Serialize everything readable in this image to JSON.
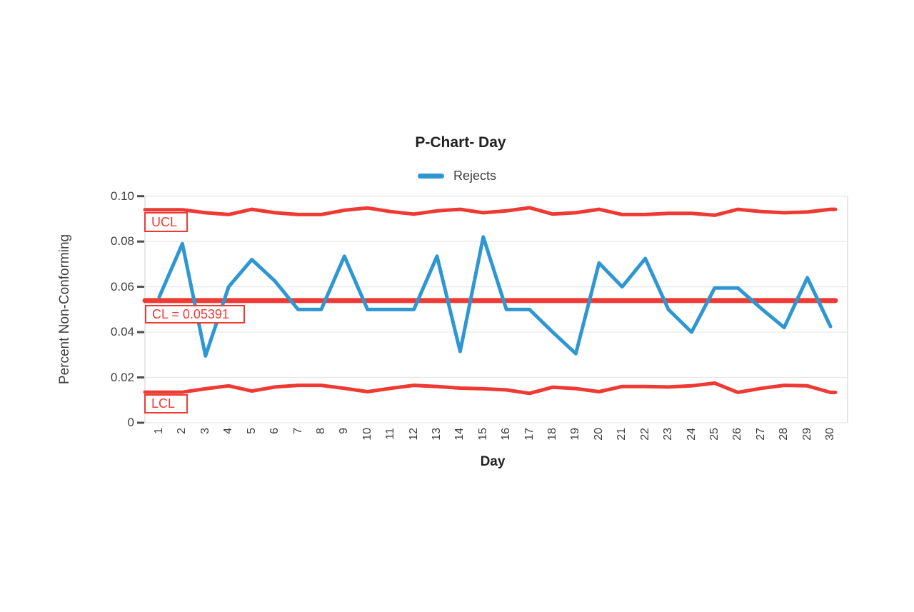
{
  "chart": {
    "title": "P-Chart- Day",
    "legend_position": "top",
    "colors": {
      "series_blue": "#2e97d3",
      "control_red": "#ee3a33",
      "gridline": "#e8e8e8",
      "axis_border": "#d9d9d9",
      "tick_mark": "#4d4d4d",
      "text": "#3f3f3f"
    },
    "annotations": {
      "ucl": "UCL",
      "cl": "CL = 0.05391",
      "lcl": "LCL"
    }
  },
  "chart_data": {
    "type": "line",
    "title": "P-Chart- Day",
    "xlabel": "Day",
    "ylabel": "Percent Non-Conforming",
    "ylim": [
      0,
      0.1
    ],
    "grid": true,
    "legend_position": "top",
    "legend_entries": [
      "Rejects"
    ],
    "y_tick_labels": [
      "0.10",
      "0.08",
      "0.06",
      "0.04",
      "0.02",
      "0"
    ],
    "y_tick_values": [
      0.1,
      0.08,
      0.06,
      0.04,
      0.02,
      0
    ],
    "x_categories": [
      1,
      2,
      3,
      4,
      5,
      6,
      7,
      8,
      9,
      10,
      11,
      12,
      13,
      14,
      15,
      16,
      17,
      18,
      19,
      20,
      21,
      22,
      23,
      24,
      25,
      26,
      27,
      28,
      29,
      30
    ],
    "center_line_value": 0.05391,
    "series": [
      {
        "name": "Rejects",
        "role": "data",
        "color": "#2e97d3",
        "values": [
          0.0555,
          0.079,
          0.0295,
          0.06,
          0.072,
          0.0625,
          0.05,
          0.05,
          0.0735,
          0.05,
          0.05,
          0.05,
          0.0735,
          0.0315,
          0.082,
          0.05,
          0.05,
          0.04,
          0.0305,
          0.0705,
          0.06,
          0.0725,
          0.05,
          0.04,
          0.0595,
          0.0595,
          0.0505,
          0.042,
          0.064,
          0.0425
        ]
      },
      {
        "name": "UCL",
        "role": "upper-control-limit",
        "color": "#ee3a33",
        "values": [
          0.094,
          0.094,
          0.0927,
          0.0919,
          0.0942,
          0.0927,
          0.0919,
          0.0919,
          0.0938,
          0.0948,
          0.0932,
          0.0921,
          0.0935,
          0.0942,
          0.0927,
          0.0935,
          0.0949,
          0.0921,
          0.0927,
          0.0942,
          0.0919,
          0.0919,
          0.0924,
          0.0924,
          0.0916,
          0.0942,
          0.0932,
          0.0927,
          0.093,
          0.0942
        ]
      },
      {
        "name": "CL",
        "role": "center-line",
        "color": "#ee3a33",
        "value": 0.05391
      },
      {
        "name": "LCL",
        "role": "lower-control-limit",
        "color": "#ee3a33",
        "values": [
          0.0135,
          0.0135,
          0.015,
          0.0163,
          0.014,
          0.0158,
          0.0165,
          0.0165,
          0.0152,
          0.0137,
          0.0152,
          0.0165,
          0.016,
          0.0153,
          0.015,
          0.0145,
          0.013,
          0.0157,
          0.0151,
          0.0137,
          0.016,
          0.016,
          0.0158,
          0.0163,
          0.0175,
          0.0134,
          0.0152,
          0.0165,
          0.0163,
          0.0134
        ]
      }
    ]
  }
}
